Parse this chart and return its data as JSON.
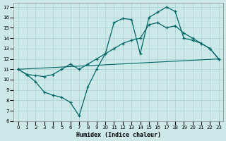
{
  "xlabel": "Humidex (Indice chaleur)",
  "bg_color": "#cce8e8",
  "grid_color": "#b0d8d8",
  "line_color": "#006666",
  "xlim": [
    -0.5,
    23.5
  ],
  "ylim": [
    6,
    17.4
  ],
  "xticks": [
    0,
    1,
    2,
    3,
    4,
    5,
    6,
    7,
    8,
    9,
    10,
    11,
    12,
    13,
    14,
    15,
    16,
    17,
    18,
    19,
    20,
    21,
    22,
    23
  ],
  "yticks": [
    6,
    7,
    8,
    9,
    10,
    11,
    12,
    13,
    14,
    15,
    16,
    17
  ],
  "line1_x": [
    0,
    1,
    2,
    3,
    4,
    5,
    6,
    7,
    8,
    9,
    10,
    11,
    12,
    13,
    14,
    15,
    16,
    17,
    18,
    19,
    20,
    21,
    22,
    23
  ],
  "line1_y": [
    11.0,
    10.5,
    9.8,
    8.8,
    8.5,
    8.3,
    7.8,
    6.5,
    9.3,
    11.0,
    12.5,
    15.5,
    15.9,
    15.8,
    12.5,
    16.0,
    16.5,
    17.0,
    16.6,
    14.0,
    13.8,
    13.5,
    13.0,
    12.0
  ],
  "line2_x": [
    0,
    1,
    2,
    3,
    4,
    5,
    6,
    7,
    8,
    9,
    10,
    11,
    12,
    13,
    14,
    15,
    16,
    17,
    18,
    19,
    20,
    21,
    22,
    23
  ],
  "line2_y": [
    11.0,
    10.5,
    10.4,
    10.3,
    10.5,
    11.0,
    11.5,
    11.0,
    11.5,
    12.0,
    12.5,
    13.0,
    13.5,
    13.8,
    14.0,
    15.3,
    15.5,
    15.0,
    15.2,
    14.5,
    14.0,
    13.5,
    13.0,
    12.0
  ],
  "line3_x": [
    0,
    23
  ],
  "line3_y": [
    11.0,
    12.0
  ]
}
